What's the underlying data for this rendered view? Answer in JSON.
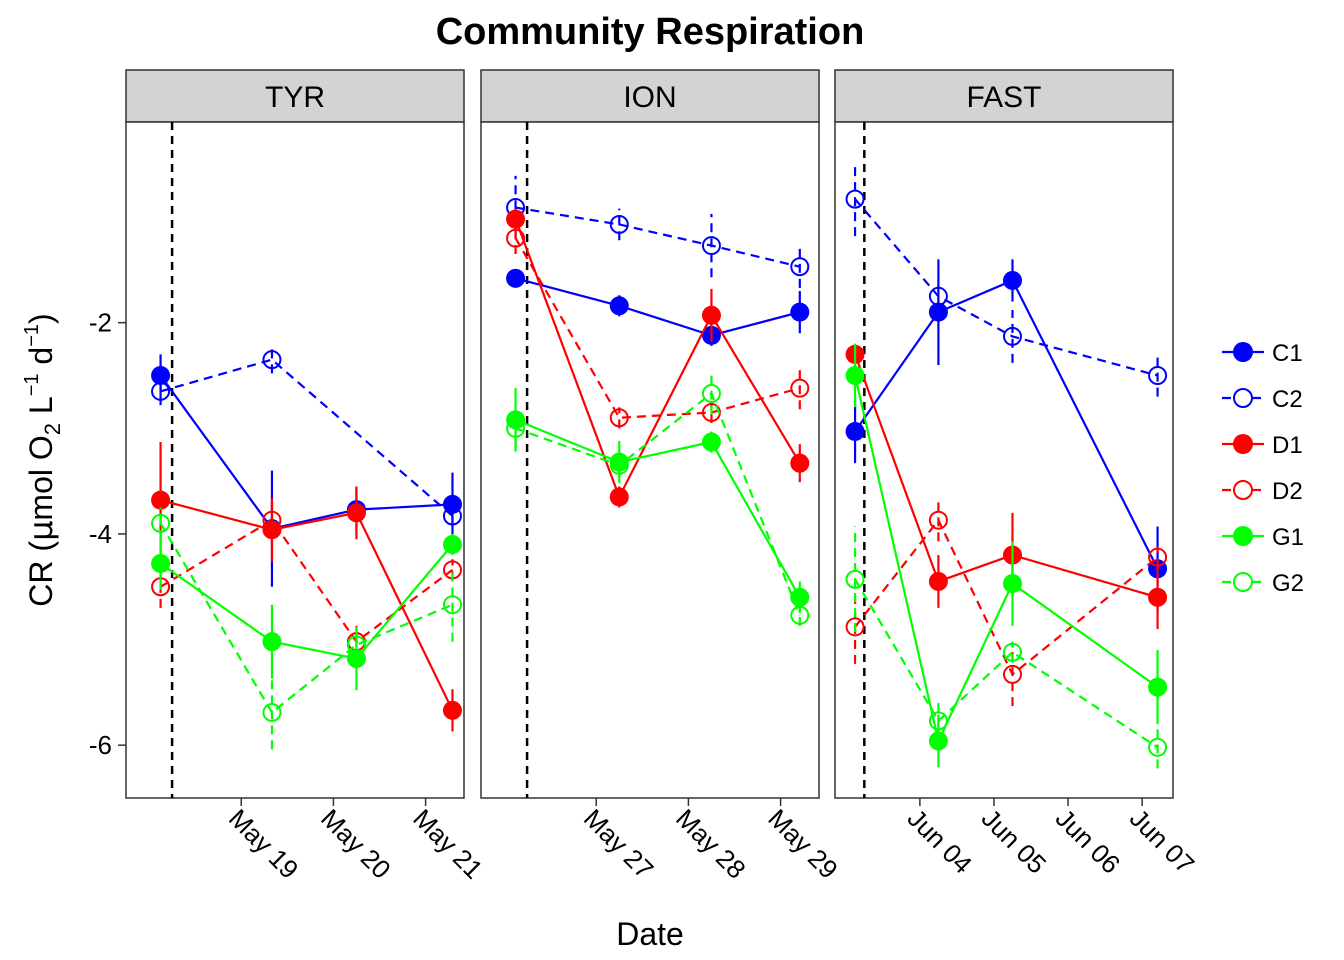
{
  "chart_data": {
    "type": "line",
    "title": "Community Respiration",
    "xlabel": "Date",
    "ylabel": {
      "prefix": "CR (",
      "mu": "μ",
      "mol": "mol O",
      "sub2": "2",
      "L": " L",
      "sup1": "−1",
      "d": " d",
      "sup2": "−1",
      "suffix": ")"
    },
    "ylim": [
      -6.5,
      -0.1
    ],
    "yticks": [
      -6,
      -4,
      -2
    ],
    "ytick_labels": [
      "-6",
      "-4",
      "-2"
    ],
    "grid": false,
    "legend_position": "right",
    "series_meta": [
      {
        "name": "C1",
        "color": "#0000ff",
        "filled": true
      },
      {
        "name": "C2",
        "color": "#0000ff",
        "filled": false
      },
      {
        "name": "D1",
        "color": "#ff0000",
        "filled": true
      },
      {
        "name": "D2",
        "color": "#ff0000",
        "filled": false
      },
      {
        "name": "G1",
        "color": "#00ff00",
        "filled": true
      },
      {
        "name": "G2",
        "color": "#00ff00",
        "filled": false
      }
    ],
    "panels": [
      {
        "name": "TYR",
        "xlim": [
          "2016-05-17 18:00",
          "2016-05-21 10:00"
        ],
        "event_time": "2016-05-18 06:00",
        "xticks": [
          "2016-05-19",
          "2016-05-20",
          "2016-05-21"
        ],
        "xtick_labels": [
          "May 19",
          "May 20",
          "May 21"
        ],
        "series": [
          {
            "name": "C1",
            "points": [
              {
                "t": "2016-05-18 03:00",
                "y": -2.5,
                "err": 0.2
              },
              {
                "t": "2016-05-19 08:00",
                "y": -3.95,
                "err": 0.55
              },
              {
                "t": "2016-05-20 06:00",
                "y": -3.77,
                "err": 0.2
              },
              {
                "t": "2016-05-21 07:00",
                "y": -3.72,
                "err": 0.3
              }
            ]
          },
          {
            "name": "C2",
            "points": [
              {
                "t": "2016-05-18 03:00",
                "y": -2.65,
                "err": 0.13
              },
              {
                "t": "2016-05-19 08:00",
                "y": -2.35,
                "err": 0.13
              },
              {
                "t": "2016-05-21 07:00",
                "y": -3.83,
                "err": 0.07
              }
            ]
          },
          {
            "name": "D1",
            "points": [
              {
                "t": "2016-05-18 03:00",
                "y": -3.68,
                "err": 0.55
              },
              {
                "t": "2016-05-19 08:00",
                "y": -3.96,
                "err": 0.3
              },
              {
                "t": "2016-05-20 06:00",
                "y": -3.8,
                "err": 0.25
              },
              {
                "t": "2016-05-21 07:00",
                "y": -5.67,
                "err": 0.2
              }
            ]
          },
          {
            "name": "D2",
            "points": [
              {
                "t": "2016-05-18 03:00",
                "y": -4.5,
                "err": 0.2
              },
              {
                "t": "2016-05-19 08:00",
                "y": -3.87,
                "err": 0.2
              },
              {
                "t": "2016-05-20 06:00",
                "y": -5.02,
                "err": 0.15
              },
              {
                "t": "2016-05-21 07:00",
                "y": -4.34,
                "err": 0.1
              }
            ]
          },
          {
            "name": "G1",
            "points": [
              {
                "t": "2016-05-18 03:00",
                "y": -4.28,
                "err": 0.25
              },
              {
                "t": "2016-05-19 08:00",
                "y": -5.02,
                "err": 0.35
              },
              {
                "t": "2016-05-20 06:00",
                "y": -5.18,
                "err": 0.3
              },
              {
                "t": "2016-05-21 07:00",
                "y": -4.1,
                "err": 0.1
              }
            ]
          },
          {
            "name": "G2",
            "points": [
              {
                "t": "2016-05-18 03:00",
                "y": -3.9,
                "err": 0.15
              },
              {
                "t": "2016-05-19 08:00",
                "y": -5.69,
                "err": 0.35
              },
              {
                "t": "2016-05-20 06:00",
                "y": -5.05,
                "err": 0.15
              },
              {
                "t": "2016-05-21 07:00",
                "y": -4.67,
                "err": 0.35
              }
            ]
          }
        ]
      },
      {
        "name": "ION",
        "xlim": [
          "2016-05-25 18:00",
          "2016-05-29 10:00"
        ],
        "event_time": "2016-05-26 06:00",
        "xticks": [
          "2016-05-27",
          "2016-05-28",
          "2016-05-29"
        ],
        "xtick_labels": [
          "May 27",
          "May 28",
          "May 29"
        ],
        "series": [
          {
            "name": "C1",
            "points": [
              {
                "t": "2016-05-26 03:00",
                "y": -1.58,
                "err": 0.07
              },
              {
                "t": "2016-05-27 06:00",
                "y": -1.84,
                "err": 0.1
              },
              {
                "t": "2016-05-28 06:00",
                "y": -2.12,
                "err": 0.1
              },
              {
                "t": "2016-05-29 05:00",
                "y": -1.9,
                "err": 0.2
              }
            ]
          },
          {
            "name": "C2",
            "points": [
              {
                "t": "2016-05-26 03:00",
                "y": -0.91,
                "err": 0.3
              },
              {
                "t": "2016-05-27 06:00",
                "y": -1.07,
                "err": 0.15
              },
              {
                "t": "2016-05-28 06:00",
                "y": -1.27,
                "err": 0.3
              },
              {
                "t": "2016-05-29 05:00",
                "y": -1.47,
                "err": 0.2
              }
            ]
          },
          {
            "name": "D1",
            "points": [
              {
                "t": "2016-05-26 03:00",
                "y": -1.02,
                "err": 0.1
              },
              {
                "t": "2016-05-27 06:00",
                "y": -3.65,
                "err": 0.1
              },
              {
                "t": "2016-05-28 06:00",
                "y": -1.93,
                "err": 0.25
              },
              {
                "t": "2016-05-29 05:00",
                "y": -3.33,
                "err": 0.18
              }
            ]
          },
          {
            "name": "D2",
            "points": [
              {
                "t": "2016-05-26 03:00",
                "y": -1.2,
                "err": 0.15
              },
              {
                "t": "2016-05-27 06:00",
                "y": -2.9,
                "err": 0.1
              },
              {
                "t": "2016-05-28 06:00",
                "y": -2.85,
                "err": 0.1
              },
              {
                "t": "2016-05-29 05:00",
                "y": -2.62,
                "err": 0.2
              }
            ]
          },
          {
            "name": "G1",
            "points": [
              {
                "t": "2016-05-26 03:00",
                "y": -2.92,
                "err": 0.3
              },
              {
                "t": "2016-05-27 06:00",
                "y": -3.32,
                "err": 0.2
              },
              {
                "t": "2016-05-28 06:00",
                "y": -3.13,
                "err": 0.1
              },
              {
                "t": "2016-05-29 05:00",
                "y": -4.6,
                "err": 0.15
              }
            ]
          },
          {
            "name": "G2",
            "points": [
              {
                "t": "2016-05-26 03:00",
                "y": -3.0,
                "err": 0.2
              },
              {
                "t": "2016-05-27 06:00",
                "y": -3.35,
                "err": 0.1
              },
              {
                "t": "2016-05-28 06:00",
                "y": -2.67,
                "err": 0.2
              },
              {
                "t": "2016-05-29 05:00",
                "y": -4.77,
                "err": 0.1
              }
            ]
          }
        ]
      },
      {
        "name": "FAST",
        "xlim": [
          "2016-06-02 20:30",
          "2016-06-07 10:00"
        ],
        "event_time": "2016-06-03 06:00",
        "xticks": [
          "2016-06-04",
          "2016-06-05",
          "2016-06-06",
          "2016-06-07"
        ],
        "xtick_labels": [
          "Jun 04",
          "Jun 05",
          "Jun 06",
          "Jun 07"
        ],
        "series": [
          {
            "name": "C1",
            "points": [
              {
                "t": "2016-06-03 03:00",
                "y": -3.03,
                "err": 0.3
              },
              {
                "t": "2016-06-04 06:00",
                "y": -1.9,
                "err": 0.5
              },
              {
                "t": "2016-06-05 06:00",
                "y": -1.6,
                "err": 0.2
              },
              {
                "t": "2016-06-07 05:00",
                "y": -4.33,
                "err": 0.4
              }
            ]
          },
          {
            "name": "C2",
            "points": [
              {
                "t": "2016-06-03 03:00",
                "y": -0.83,
                "err": 0.35
              },
              {
                "t": "2016-06-04 06:00",
                "y": -1.75,
                "err": 0.1
              },
              {
                "t": "2016-06-05 06:00",
                "y": -2.13,
                "err": 0.25
              },
              {
                "t": "2016-06-07 05:00",
                "y": -2.5,
                "err": 0.2
              }
            ]
          },
          {
            "name": "D1",
            "points": [
              {
                "t": "2016-06-03 03:00",
                "y": -2.3,
                "err": 0.1
              },
              {
                "t": "2016-06-04 06:00",
                "y": -4.45,
                "err": 0.25
              },
              {
                "t": "2016-06-05 06:00",
                "y": -4.2,
                "err": 0.4
              },
              {
                "t": "2016-06-07 05:00",
                "y": -4.6,
                "err": 0.3
              }
            ]
          },
          {
            "name": "D2",
            "points": [
              {
                "t": "2016-06-03 03:00",
                "y": -4.88,
                "err": 0.35
              },
              {
                "t": "2016-06-04 06:00",
                "y": -3.87,
                "err": 0.2
              },
              {
                "t": "2016-06-05 06:00",
                "y": -5.33,
                "err": 0.3
              },
              {
                "t": "2016-06-07 05:00",
                "y": -4.22,
                "err": 0.1
              }
            ]
          },
          {
            "name": "G1",
            "points": [
              {
                "t": "2016-06-03 03:00",
                "y": -2.5,
                "err": 0.3
              },
              {
                "t": "2016-06-04 06:00",
                "y": -5.96,
                "err": 0.25
              },
              {
                "t": "2016-06-05 06:00",
                "y": -4.47,
                "err": 0.4
              },
              {
                "t": "2016-06-07 05:00",
                "y": -5.45,
                "err": 0.35
              }
            ]
          },
          {
            "name": "G2",
            "points": [
              {
                "t": "2016-06-03 03:00",
                "y": -4.43,
                "err": 0.5
              },
              {
                "t": "2016-06-04 06:00",
                "y": -5.77,
                "err": 0.2
              },
              {
                "t": "2016-06-05 06:00",
                "y": -5.12,
                "err": 0.1
              },
              {
                "t": "2016-06-07 05:00",
                "y": -6.02,
                "err": 0.2
              }
            ]
          }
        ]
      }
    ]
  }
}
